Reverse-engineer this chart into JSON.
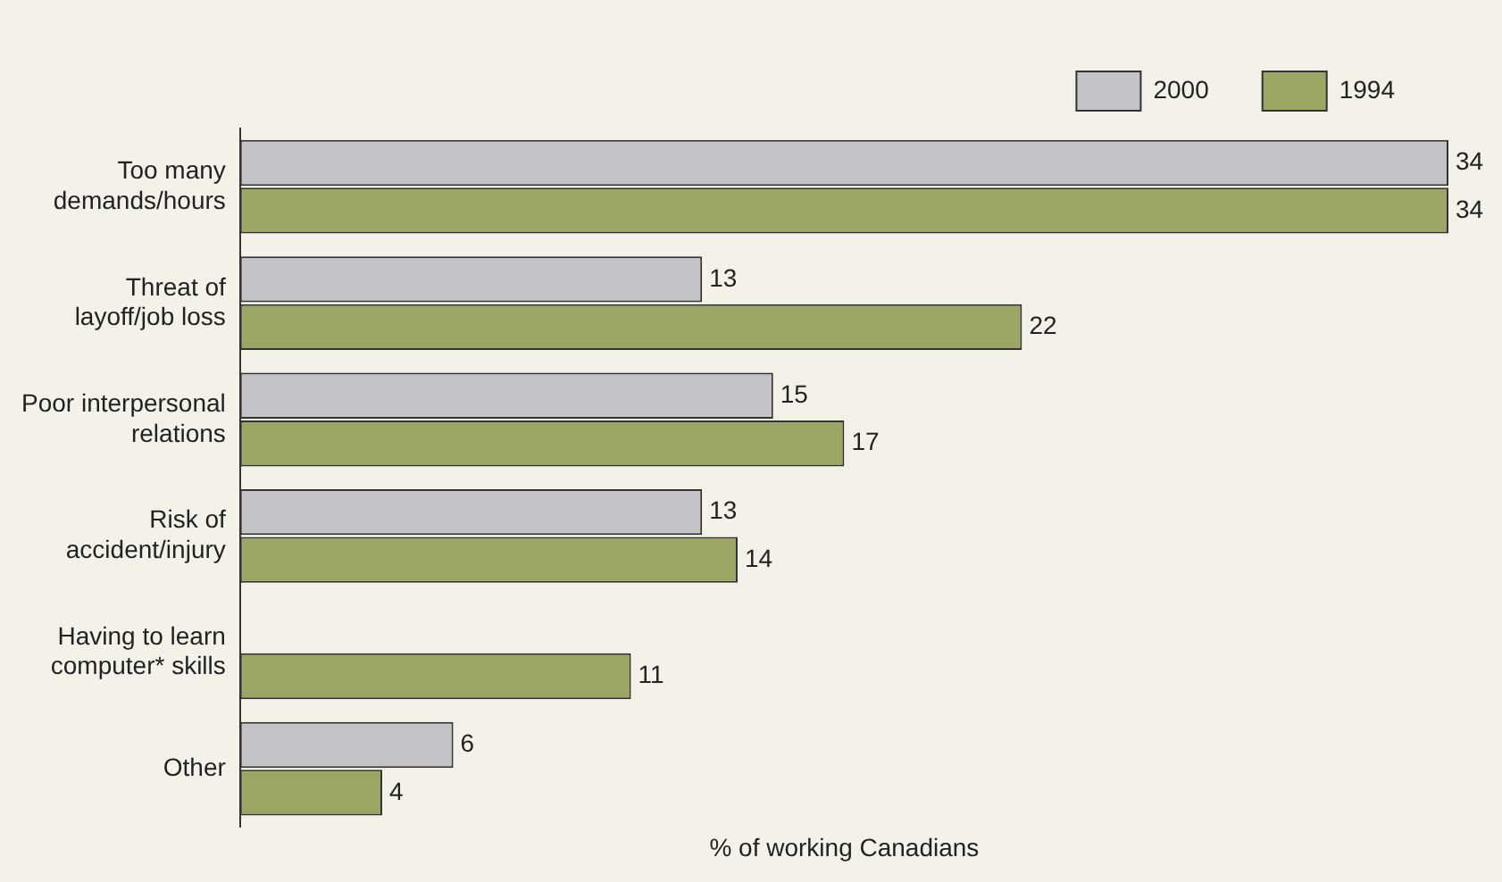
{
  "chart_data": {
    "type": "bar",
    "orientation": "horizontal",
    "xlabel": "% of working Canadians",
    "categories": [
      "Too many demands/hours",
      "Threat of layoff/job loss",
      "Poor interpersonal relations",
      "Risk of accident/injury",
      "Having to learn computer* skills",
      "Other"
    ],
    "series": [
      {
        "name": "2000",
        "color": "#c3c3c8",
        "values": [
          34,
          13,
          15,
          13,
          null,
          6
        ]
      },
      {
        "name": "1994",
        "color": "#9da563",
        "values": [
          34,
          22,
          17,
          14,
          11,
          4
        ]
      }
    ],
    "xlim": [
      0,
      34
    ],
    "data_labels": true,
    "legend": "top right",
    "grid": false
  }
}
